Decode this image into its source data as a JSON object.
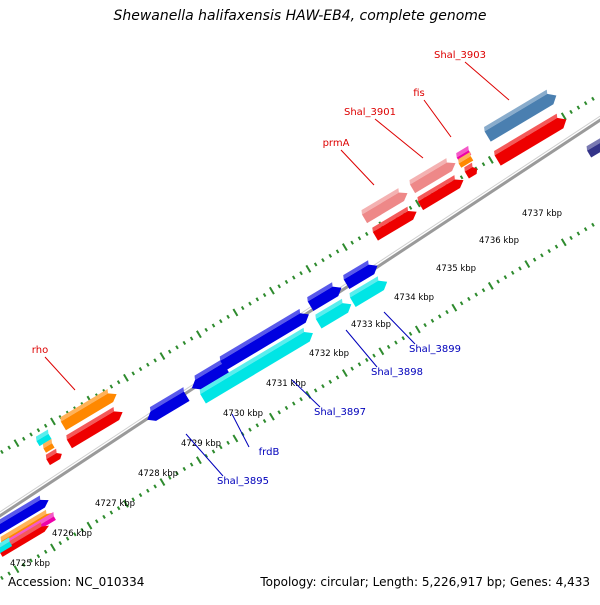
{
  "title": "Shewanella halifaxensis HAW-EB4, complete genome",
  "accession": "Accession: NC_010334",
  "summary": "Topology: circular; Length: 5,226,917 bp; Genes: 4,433",
  "colors": {
    "backbone": "#9a9a9a",
    "ticks": "#2e8b2e",
    "forward_label": "#dd0000",
    "reverse_label": "#0000bb",
    "cds_blue": "#0000e0",
    "cds_cyan": "#00e5e5",
    "cds_red": "#ee0000",
    "cds_pink": "#ee8888",
    "cds_orange": "#ff8800",
    "cds_steel": "#4a7fb0",
    "cds_magenta": "#ee00aa"
  },
  "kbp_labels": [
    "4725 kbp",
    "4726 kbp",
    "4727 kbp",
    "4728 kbp",
    "4729 kbp",
    "4730 kbp",
    "4731 kbp",
    "4732 kbp",
    "4733 kbp",
    "4734 kbp",
    "4735 kbp",
    "4736 kbp",
    "4737 kbp"
  ],
  "gene_labels_forward": [
    "rho",
    "prmA",
    "Shal_3901",
    "fis",
    "Shal_3903"
  ],
  "gene_labels_reverse": [
    "Shal_3895",
    "frdB",
    "Shal_3897",
    "Shal_3898",
    "Shal_3899"
  ]
}
